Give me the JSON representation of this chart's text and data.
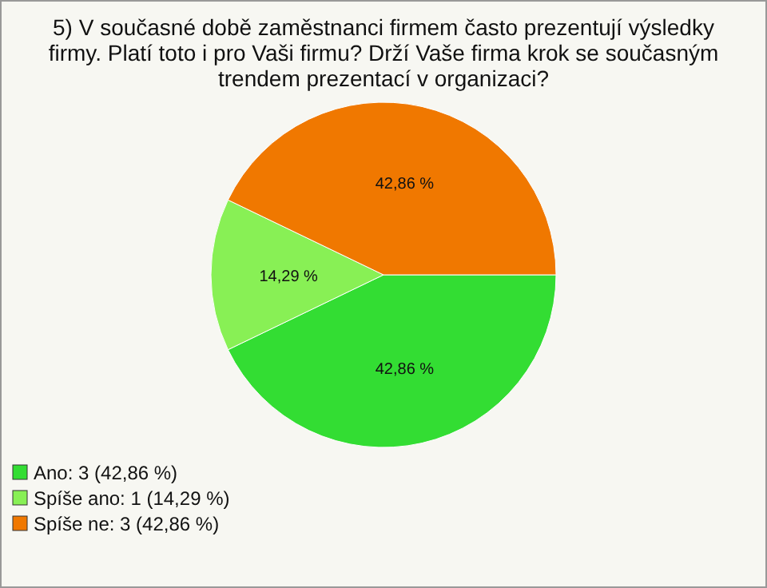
{
  "chart_data": {
    "type": "pie",
    "title": "5) V současné době zaměstnanci firmem často prezentují výsledky firmy. Platí toto i pro Vaši firmu? Drží Vaše firma krok se současným trendem prezentací v organizaci?",
    "categories": [
      "Ano: 3 (42,86 %)",
      "Spíše ano: 1 (14,29 %)",
      "Spíše ne: 3 (42,86 %)"
    ],
    "values": [
      42.86,
      14.29,
      42.86
    ],
    "colors": [
      "#33dd33",
      "#88f055",
      "#f07800"
    ],
    "value_labels": [
      "42,86 %",
      "14,29 %",
      "42,86 %"
    ],
    "legend": "bottom left"
  }
}
